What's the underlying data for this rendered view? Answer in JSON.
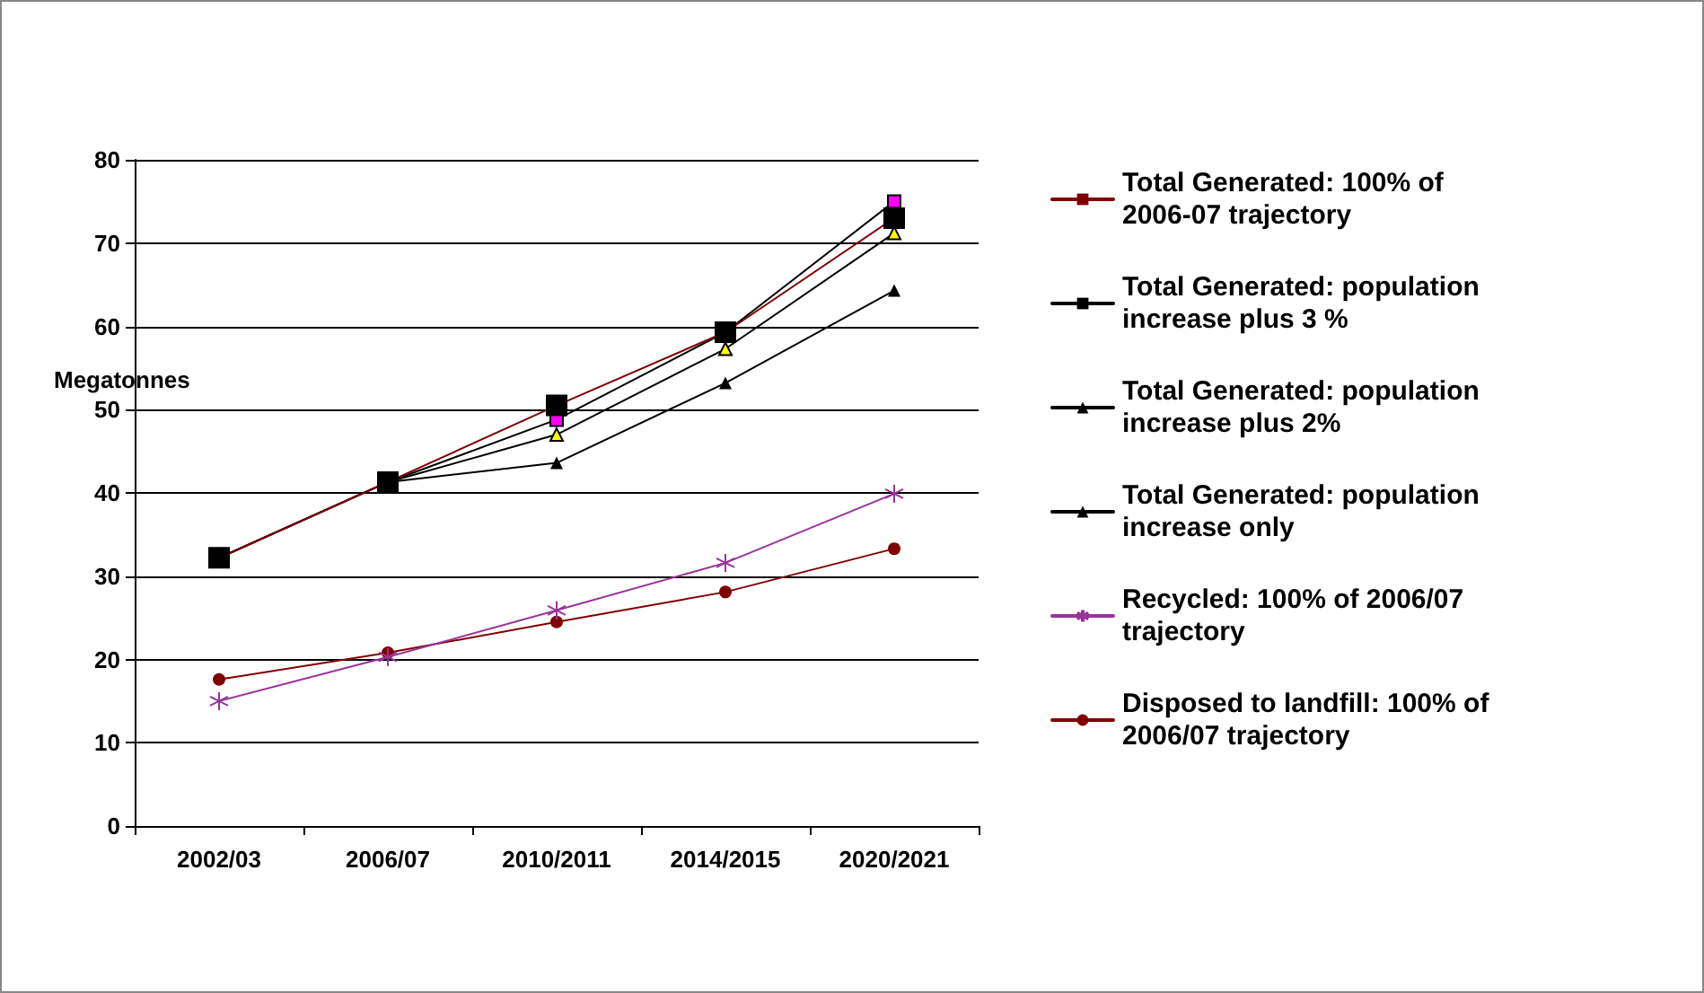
{
  "chart_data": {
    "type": "line",
    "ylabel": "Megatonnes",
    "categories": [
      "2002/03",
      "2006/07",
      "2010/2011",
      "2014/2015",
      "2020/2021"
    ],
    "ylim": [
      0,
      80
    ],
    "yticks": [
      0,
      10,
      20,
      30,
      40,
      50,
      60,
      70,
      80
    ],
    "grid": "y",
    "legend": "right",
    "line_style": "solid",
    "series": [
      {
        "name": "Total Generated: 100% of 2006-07 trajectory",
        "color": "#800000",
        "colors": [
          "#000000",
          "#000000",
          "#000000",
          "#000000",
          "#000000"
        ],
        "marker": "square",
        "values": [
          32.2,
          41.3,
          50.5,
          59.3,
          73
        ]
      },
      {
        "name": "Total Generated: population increase plus 3 %",
        "color": "#000000",
        "colors": [
          "#ff00ff",
          "#ff00ff",
          "#ff00ff",
          "#ff00ff",
          "#ff00ff"
        ],
        "marker": "square",
        "values": [
          32.2,
          41.3,
          48.8,
          59.3,
          75
        ]
      },
      {
        "name": "Total Generated: population increase plus 2%",
        "color": "#000000",
        "colors": [
          "#ffff00",
          "#ffff00",
          "#ffff00",
          "#ffff00",
          "#ffff00"
        ],
        "marker": "triangle",
        "values": [
          32.2,
          41.3,
          47,
          57.3,
          71.2
        ]
      },
      {
        "name": "Total Generated: population increase only",
        "color": "#000000",
        "marker": "triangle",
        "values": [
          32.2,
          41.3,
          43.6,
          53.2,
          64.3
        ]
      },
      {
        "name": "Recycled: 100% of 2006/07 trajectory",
        "color": "#993399",
        "marker": "cross",
        "values": [
          15,
          20.3,
          25.9,
          31.6,
          39.9
        ]
      },
      {
        "name": "Disposed to landfill: 100% of 2006/07 trajectory",
        "color": "#800000",
        "marker": "circle",
        "values": [
          17.6,
          20.8,
          24.5,
          28.1,
          33.3
        ]
      }
    ]
  }
}
